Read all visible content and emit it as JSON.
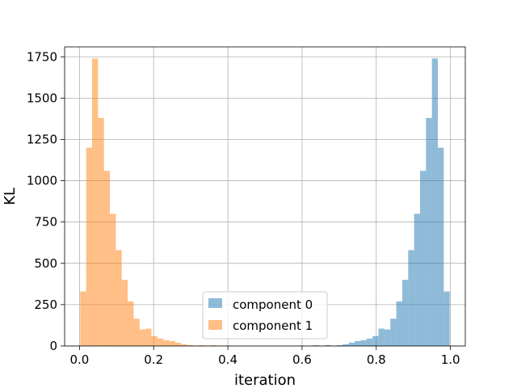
{
  "chart_data": {
    "type": "bar",
    "subtype": "histogram",
    "title": "",
    "xlabel": "iteration",
    "ylabel": "KL",
    "xlim": [
      -0.04,
      1.04
    ],
    "ylim": [
      0,
      1810
    ],
    "xticks": [
      0.0,
      0.2,
      0.4,
      0.6,
      0.8,
      1.0
    ],
    "xtick_labels": [
      "0.0",
      "0.2",
      "0.4",
      "0.6",
      "0.8",
      "1.0"
    ],
    "yticks": [
      0,
      250,
      500,
      750,
      1000,
      1250,
      1500,
      1750
    ],
    "ytick_labels": [
      "0",
      "250",
      "500",
      "750",
      "1000",
      "1250",
      "1500",
      "1750"
    ],
    "grid": true,
    "legend_position": "lower-center",
    "series": [
      {
        "name": "component 0",
        "color": "#1f77b4",
        "alpha": 0.5,
        "bin_edges": [
          0.63,
          0.646,
          0.662,
          0.678,
          0.694,
          0.71,
          0.726,
          0.742,
          0.758,
          0.774,
          0.79,
          0.806,
          0.822,
          0.838,
          0.854,
          0.87,
          0.886,
          0.902,
          0.918,
          0.934,
          0.95,
          0.966,
          0.982,
          0.998
        ],
        "values": [
          5,
          0,
          5,
          0,
          5,
          10,
          20,
          30,
          35,
          45,
          60,
          105,
          100,
          165,
          270,
          400,
          580,
          800,
          1060,
          1380,
          1740,
          1200,
          330
        ]
      },
      {
        "name": "component 1",
        "color": "#ff7f0e",
        "alpha": 0.5,
        "bin_edges": [
          0.002,
          0.018,
          0.034,
          0.05,
          0.066,
          0.082,
          0.098,
          0.114,
          0.13,
          0.146,
          0.162,
          0.178,
          0.194,
          0.21,
          0.226,
          0.242,
          0.258,
          0.274,
          0.29,
          0.306,
          0.322,
          0.338,
          0.354,
          0.37
        ],
        "values": [
          330,
          1200,
          1740,
          1380,
          1060,
          800,
          580,
          400,
          270,
          165,
          100,
          105,
          60,
          45,
          35,
          30,
          20,
          10,
          5,
          0,
          5,
          0,
          5
        ]
      }
    ]
  }
}
